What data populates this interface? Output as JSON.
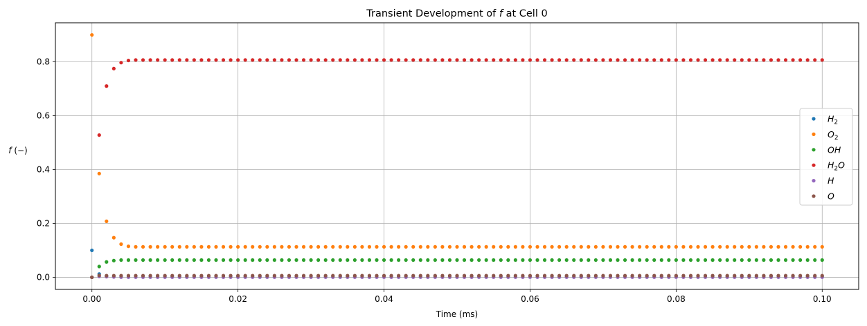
{
  "chart_data": {
    "type": "scatter",
    "title_prefix": "Transient Development of ",
    "title_var": "f",
    "title_suffix": " at Cell 0",
    "xlabel": "Time (ms)",
    "ylabel_var": "f",
    "ylabel_unit": "(−)",
    "xlim": [
      -0.005,
      0.105
    ],
    "ylim": [
      -0.045,
      0.945
    ],
    "x_ticks": [
      0.0,
      0.02,
      0.04,
      0.06,
      0.08,
      0.1
    ],
    "x_tick_labels": [
      "0.00",
      "0.02",
      "0.04",
      "0.06",
      "0.08",
      "0.10"
    ],
    "y_ticks": [
      0.0,
      0.2,
      0.4,
      0.6,
      0.8
    ],
    "y_tick_labels": [
      "0.0",
      "0.2",
      "0.4",
      "0.6",
      "0.8"
    ],
    "grid": true,
    "legend_position": "center-right",
    "time_start": 0.0,
    "time_step": 0.001,
    "num_points": 101,
    "series": [
      {
        "name": "H2",
        "legend_base": "H",
        "legend_sub": "2",
        "legend_tail": "",
        "color": "#1f77b4",
        "initial": [
          0.1,
          0.012,
          0.004,
          0.002
        ],
        "steady": 0.001
      },
      {
        "name": "O2",
        "legend_base": "O",
        "legend_sub": "2",
        "legend_tail": "",
        "color": "#ff7f0e",
        "initial": [
          0.9,
          0.385,
          0.208,
          0.147,
          0.123,
          0.115
        ],
        "steady": 0.113
      },
      {
        "name": "OH",
        "legend_base": "OH",
        "legend_sub": "",
        "legend_tail": "",
        "color": "#2ca02c",
        "initial": [
          0.0,
          0.04,
          0.057,
          0.062
        ],
        "steady": 0.064
      },
      {
        "name": "H2O",
        "legend_base": "H",
        "legend_sub": "2",
        "legend_tail": "O",
        "color": "#d62728",
        "initial": [
          0.0,
          0.528,
          0.71,
          0.775,
          0.797,
          0.805
        ],
        "steady": 0.807
      },
      {
        "name": "H",
        "legend_base": "H",
        "legend_sub": "",
        "legend_tail": "",
        "color": "#9467bd",
        "initial": [
          0.0,
          0.003,
          0.002,
          0.001
        ],
        "steady": 0.0005
      },
      {
        "name": "O",
        "legend_base": "O",
        "legend_sub": "",
        "legend_tail": "",
        "color": "#8c564b",
        "initial": [
          0.0,
          0.007,
          0.006,
          0.006
        ],
        "steady": 0.006
      }
    ]
  }
}
